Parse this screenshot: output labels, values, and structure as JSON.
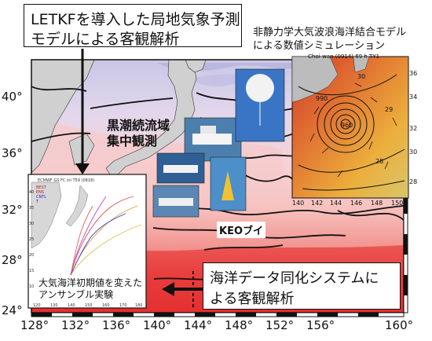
{
  "top_callout": {
    "line1": "LETKFを導入した局地気象予測",
    "line2": "モデルによる客観解析"
  },
  "right_caption": {
    "line1": "非静力学大気波浪海洋結合モデル",
    "line2": "による数値シミュレーション"
  },
  "inset_right": {
    "header": "Choi-wan (0914) 69 h TY1",
    "lat_labels": [
      "36",
      "34",
      "32",
      "30",
      "28"
    ],
    "lon_labels": [
      "140",
      "142",
      "144",
      "146",
      "148",
      "150"
    ],
    "contour_labels": [
      "960",
      "990",
      "28",
      "29",
      "30"
    ]
  },
  "map": {
    "lat_labels": [
      "40°",
      "36°",
      "32°",
      "28°",
      "24°"
    ],
    "lon_labels": [
      "128°",
      "132°",
      "136°",
      "140°",
      "144°",
      "148°",
      "152°",
      "156°",
      "160°"
    ],
    "kuroshio_label": {
      "line1": "黒潮続流域",
      "line2": "集中観測"
    },
    "keo_label": "KEOブイ",
    "bottom_callout": {
      "line1": "海洋データ同化システムに",
      "line2": "よる客観解析"
    }
  },
  "inset_left": {
    "header": "ECMWF GS FC ini T59 (0818)",
    "legend": [
      "BEST",
      "ENS",
      "CNTL",
      "T"
    ],
    "lat_labels": [
      "40",
      "35",
      "30",
      "25",
      "20",
      "15",
      "10"
    ],
    "lon_labels": [
      "120",
      "130",
      "140",
      "150",
      "160",
      "170",
      "180"
    ],
    "caption": {
      "line1": "大気海洋初期値を変えた",
      "line2": "アンサンブル実験"
    }
  },
  "colors": {
    "sea_deep_red": "#e63232",
    "sea_pink": "#f7c7c3",
    "sea_lavender": "#d5d3ec",
    "land": "#d0d0d0",
    "contour": "#111111"
  }
}
